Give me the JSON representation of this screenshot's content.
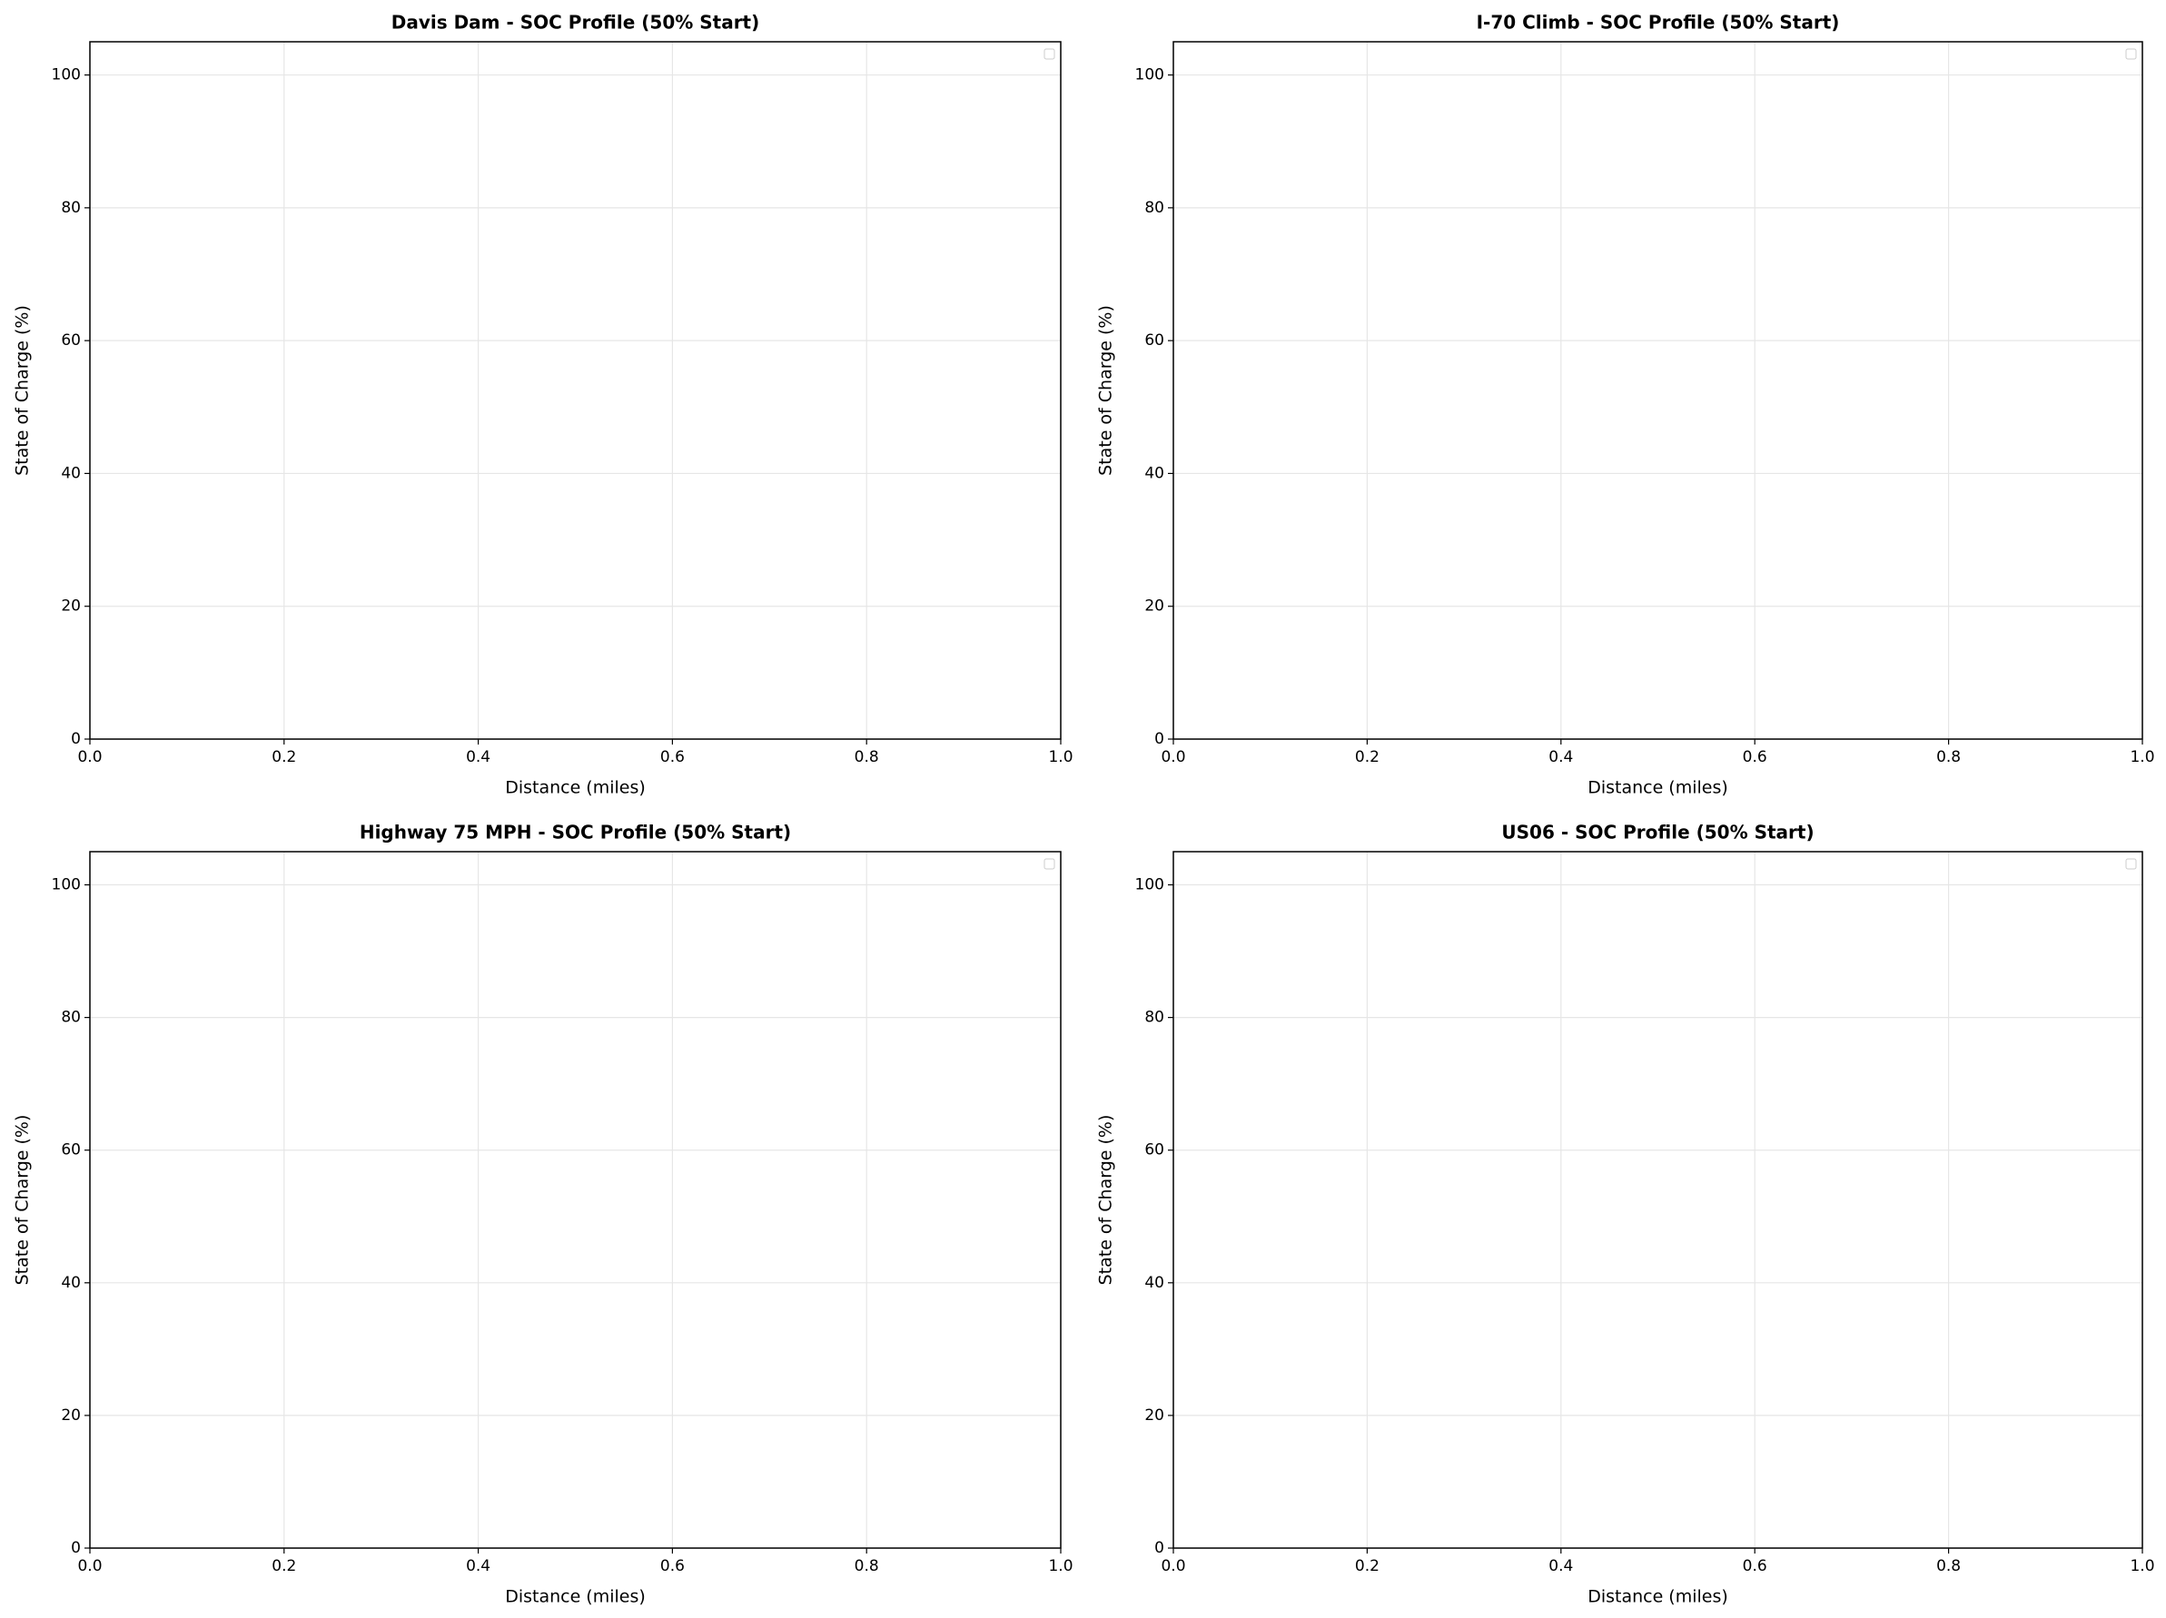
{
  "chart_data": [
    {
      "type": "line",
      "title": "Davis Dam - SOC Profile (50% Start)",
      "xlabel": "Distance (miles)",
      "ylabel": "State of Charge (%)",
      "xlim": [
        0,
        1
      ],
      "ylim": [
        0,
        105
      ],
      "xticks": [
        {
          "value": 0,
          "label": "0.0"
        },
        0.2,
        0.4,
        0.6,
        0.8,
        {
          "value": 1,
          "label": "1.0"
        }
      ],
      "yticks": [
        0,
        20,
        40,
        60,
        80,
        100
      ],
      "grid": true,
      "legend": "upper right",
      "series": []
    },
    {
      "type": "line",
      "title": "I-70 Climb - SOC Profile (50% Start)",
      "xlabel": "Distance (miles)",
      "ylabel": "State of Charge (%)",
      "xlim": [
        0,
        1
      ],
      "ylim": [
        0,
        105
      ],
      "xticks": [
        {
          "value": 0,
          "label": "0.0"
        },
        0.2,
        0.4,
        0.6,
        0.8,
        {
          "value": 1,
          "label": "1.0"
        }
      ],
      "yticks": [
        0,
        20,
        40,
        60,
        80,
        100
      ],
      "grid": true,
      "legend": "upper right",
      "series": []
    },
    {
      "type": "line",
      "title": "Highway 75 MPH - SOC Profile (50% Start)",
      "xlabel": "Distance (miles)",
      "ylabel": "State of Charge (%)",
      "xlim": [
        0,
        1
      ],
      "ylim": [
        0,
        105
      ],
      "xticks": [
        {
          "value": 0,
          "label": "0.0"
        },
        0.2,
        0.4,
        0.6,
        0.8,
        {
          "value": 1,
          "label": "1.0"
        }
      ],
      "yticks": [
        0,
        20,
        40,
        60,
        80,
        100
      ],
      "grid": true,
      "legend": "upper right",
      "series": []
    },
    {
      "type": "line",
      "title": "US06 - SOC Profile (50% Start)",
      "xlabel": "Distance (miles)",
      "ylabel": "State of Charge (%)",
      "xlim": [
        0,
        1
      ],
      "ylim": [
        0,
        105
      ],
      "xticks": [
        {
          "value": 0,
          "label": "0.0"
        },
        0.2,
        0.4,
        0.6,
        0.8,
        {
          "value": 1,
          "label": "1.0"
        }
      ],
      "yticks": [
        0,
        20,
        40,
        60,
        80,
        100
      ],
      "grid": true,
      "legend": "upper right",
      "series": []
    }
  ]
}
